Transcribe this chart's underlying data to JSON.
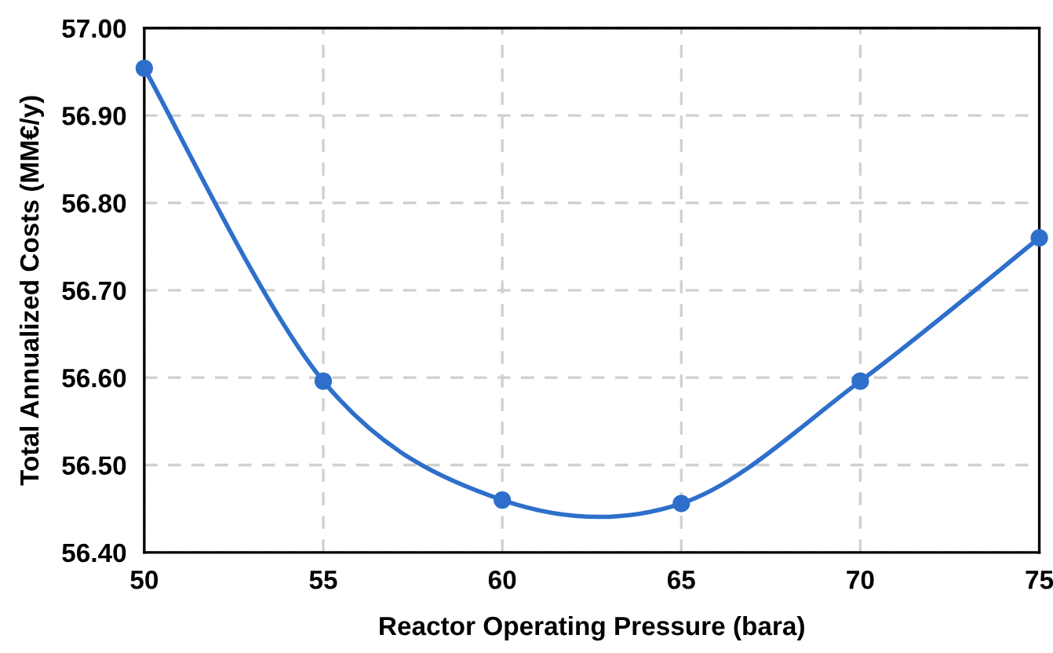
{
  "chart_data": {
    "type": "line",
    "xlabel": "Reactor Operating Pressure (bara)",
    "ylabel": "Total Annualized Costs (MM€/y)",
    "x": [
      50,
      55,
      60,
      65,
      70,
      75
    ],
    "series": [
      {
        "color": "#2e6fcb",
        "values": [
          56.954,
          56.596,
          56.46,
          56.456,
          56.596,
          56.76
        ]
      }
    ],
    "xlim": [
      50,
      75
    ],
    "xticks": [
      50,
      55,
      60,
      65,
      70,
      75
    ],
    "ylim": [
      56.4,
      57.0
    ],
    "yticks": [
      {
        "value": 56.4,
        "label": "56.40"
      },
      {
        "value": 56.5,
        "label": "56.50"
      },
      {
        "value": 56.6,
        "label": "56.60"
      },
      {
        "value": 56.7,
        "label": "56.70"
      },
      {
        "value": 56.8,
        "label": "56.80"
      },
      {
        "value": 56.9,
        "label": "56.90"
      },
      {
        "value": 57.0,
        "label": "57.00"
      }
    ],
    "grid": true,
    "marker": "circle",
    "line_style": "solid"
  }
}
